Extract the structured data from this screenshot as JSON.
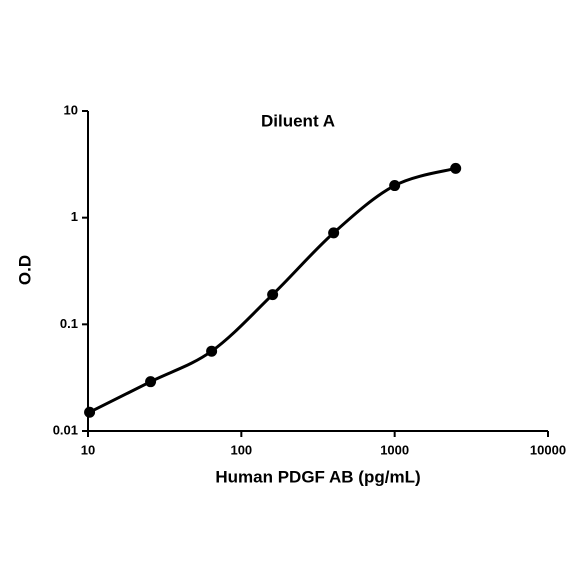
{
  "chart_data": {
    "type": "line",
    "title": "Diluent A",
    "x_label": "Human PDGF AB (pg/mL)",
    "y_label": "O.D",
    "x": [
      10.24,
      25.6,
      64,
      160,
      400,
      1000,
      2500
    ],
    "series": [
      {
        "color": "#000000",
        "values": [
          0.015,
          0.029,
          0.056,
          0.19,
          0.72,
          2.0,
          2.9
        ]
      }
    ],
    "xlim": [
      10,
      10000
    ],
    "xticks": [
      10,
      100,
      1000,
      10000
    ],
    "ylim": [
      0.01,
      10
    ],
    "yticks": [
      0.01,
      0.1,
      1,
      10
    ],
    "x_log": true,
    "y_log": true,
    "smooth": true,
    "grid": false
  }
}
